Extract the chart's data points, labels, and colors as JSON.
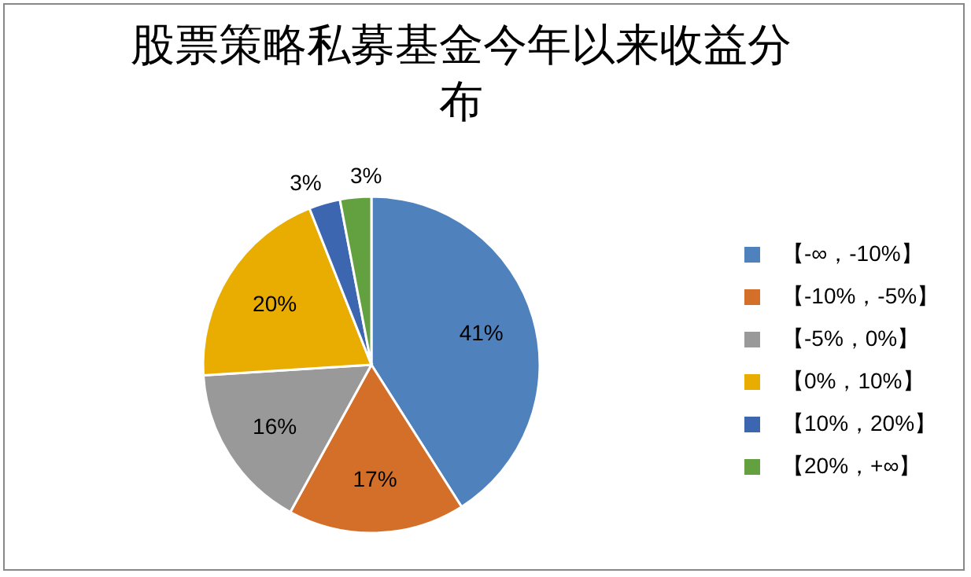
{
  "chart_data": {
    "type": "pie",
    "title": "股票策略私募基金今年以来收益分布",
    "categories": [
      "【-∞，-10%】",
      "【-10%，-5%】",
      "【-5%，0%】",
      "【0%，10%】",
      "【10%，20%】",
      "【20%，+∞】"
    ],
    "values": [
      41,
      17,
      16,
      20,
      3,
      3
    ],
    "colors": [
      "#4f81bd",
      "#d46f2a",
      "#999999",
      "#e8ad00",
      "#3d66b0",
      "#63a03f"
    ],
    "value_labels": [
      "41%",
      "17%",
      "16%",
      "20%",
      "3%",
      "3%"
    ],
    "legend": "right"
  }
}
